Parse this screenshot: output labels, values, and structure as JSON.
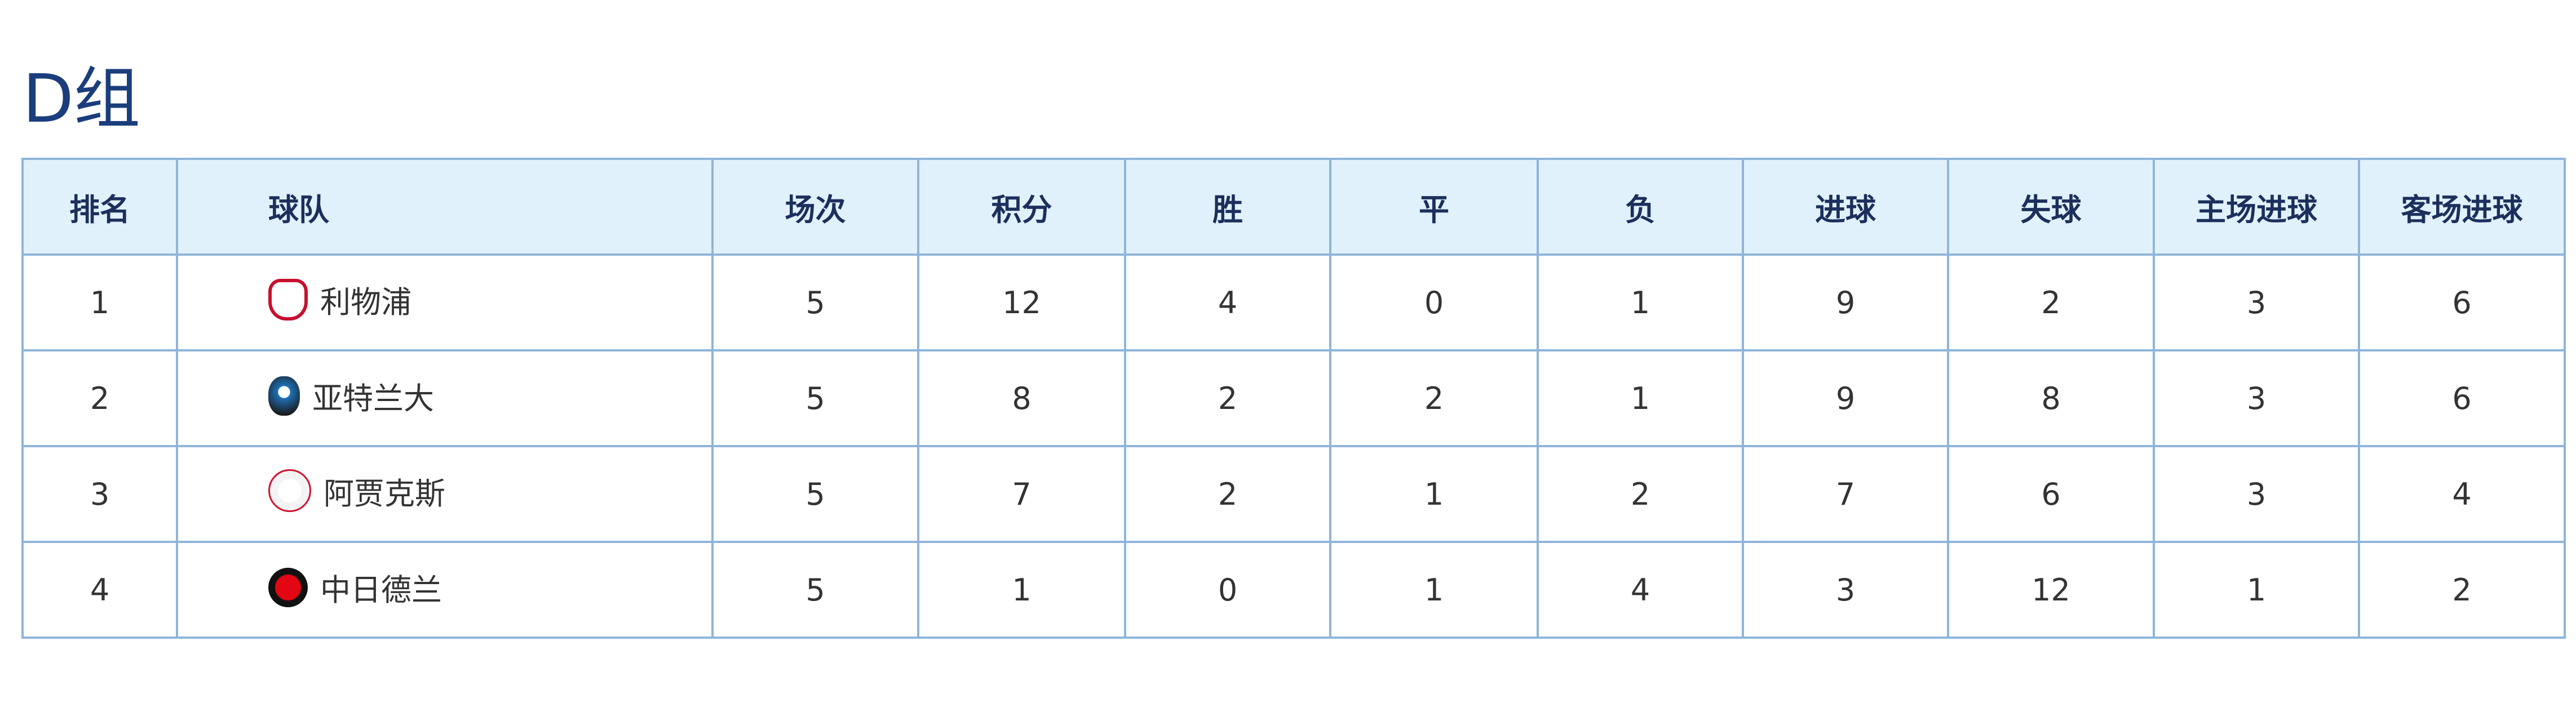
{
  "group_title": "D组",
  "headers": [
    "排名",
    "球队",
    "场次",
    "积分",
    "胜",
    "平",
    "负",
    "进球",
    "失球",
    "主场进球",
    "客场进球"
  ],
  "rows": [
    {
      "rank": "1",
      "team": "利物浦",
      "logo": "liverpool-crest-icon",
      "logo_color": "#c8102e",
      "played": "5",
      "points": "12",
      "won": "4",
      "drawn": "0",
      "lost": "1",
      "gf": "9",
      "ga": "2",
      "home_goals": "3",
      "away_goals": "6"
    },
    {
      "rank": "2",
      "team": "亚特兰大",
      "logo": "atalanta-crest-icon",
      "logo_color": "#1e71b8",
      "played": "5",
      "points": "8",
      "won": "2",
      "drawn": "2",
      "lost": "1",
      "gf": "9",
      "ga": "8",
      "home_goals": "3",
      "away_goals": "6"
    },
    {
      "rank": "3",
      "team": "阿贾克斯",
      "logo": "ajax-crest-icon",
      "logo_color": "#d2122e",
      "played": "5",
      "points": "7",
      "won": "2",
      "drawn": "1",
      "lost": "2",
      "gf": "7",
      "ga": "6",
      "home_goals": "3",
      "away_goals": "4"
    },
    {
      "rank": "4",
      "team": "中日德兰",
      "logo": "midtjylland-crest-icon",
      "logo_color": "#e30613",
      "played": "5",
      "points": "1",
      "won": "0",
      "drawn": "1",
      "lost": "4",
      "gf": "3",
      "ga": "12",
      "home_goals": "1",
      "away_goals": "2"
    }
  ],
  "colors": {
    "header_bg": "#e1f1fb",
    "border": "#8fb5da",
    "title": "#1a3d7c"
  }
}
